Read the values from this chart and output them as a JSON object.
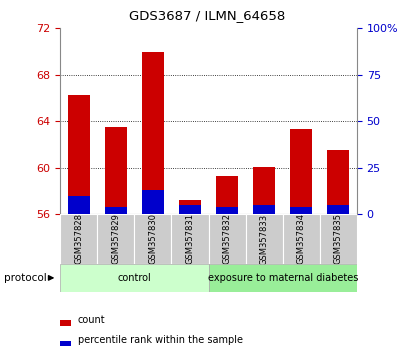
{
  "title": "GDS3687 / ILMN_64658",
  "samples": [
    "GSM357828",
    "GSM357829",
    "GSM357830",
    "GSM357831",
    "GSM357832",
    "GSM357833",
    "GSM357834",
    "GSM357835"
  ],
  "count_values": [
    66.3,
    63.5,
    70.0,
    57.2,
    59.3,
    60.1,
    63.3,
    61.5
  ],
  "percentile_values": [
    10,
    4,
    13,
    5,
    4,
    5,
    4,
    5
  ],
  "ylim_left": [
    56,
    72
  ],
  "ylim_right": [
    0,
    100
  ],
  "yticks_left": [
    56,
    60,
    64,
    68,
    72
  ],
  "yticks_right": [
    0,
    25,
    50,
    75,
    100
  ],
  "ytick_labels_right": [
    "0",
    "25",
    "50",
    "75",
    "100%"
  ],
  "bar_bottom": 56,
  "count_color": "#cc0000",
  "percentile_color": "#0000cc",
  "group_labels": [
    "control",
    "exposure to maternal diabetes"
  ],
  "group_colors": [
    "#ccffcc",
    "#99ee99"
  ],
  "protocol_label": "protocol",
  "legend_count": "count",
  "legend_percentile": "percentile rank within the sample",
  "tick_label_color_left": "#cc0000",
  "tick_label_color_right": "#0000cc",
  "sample_bg_color": "#cccccc",
  "grid_ticks": [
    60,
    64,
    68
  ]
}
